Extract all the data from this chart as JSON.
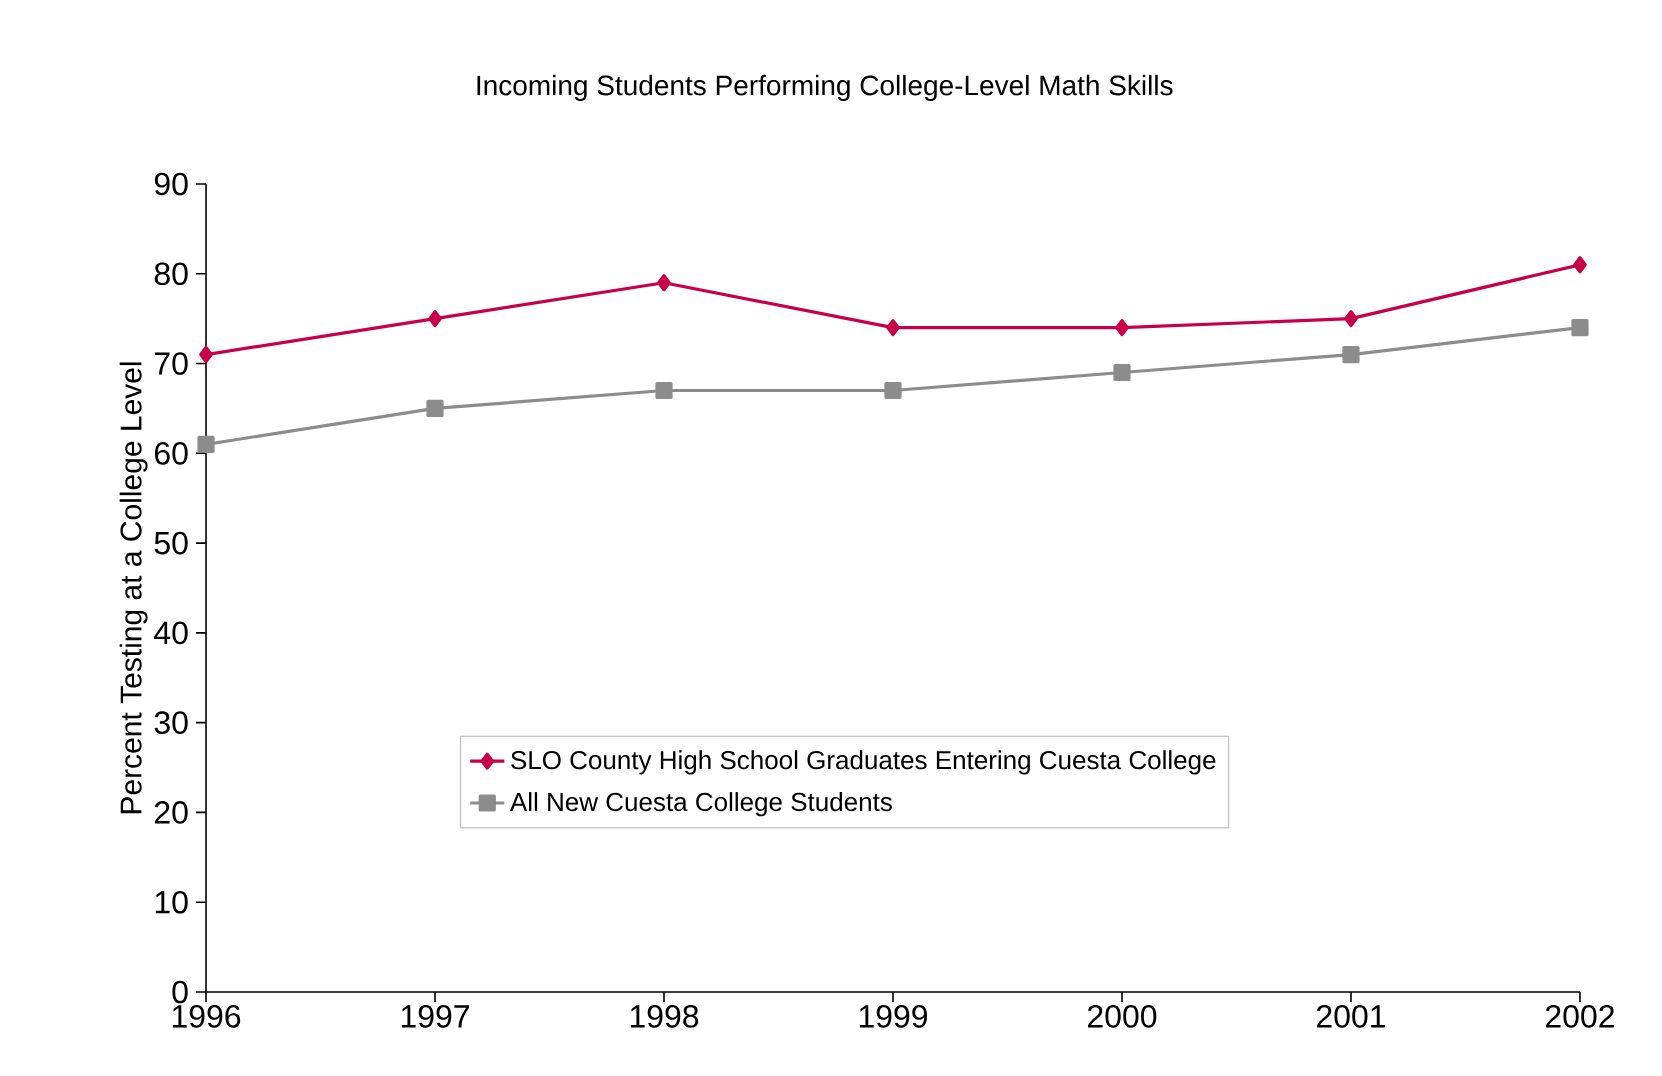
{
  "chart_data": {
    "type": "line",
    "title": "Incoming Students Performing College-Level Math Skills",
    "ylabel": "Percent Testing at a College Level",
    "x": [
      1996,
      1997,
      1998,
      1999,
      2000,
      2001,
      2002
    ],
    "series": [
      {
        "name": "SLO County High School Graduates Entering Cuesta College",
        "color": "#c8004a",
        "marker": "diamond",
        "values": [
          71,
          75,
          79,
          74,
          74,
          75,
          81
        ]
      },
      {
        "name": "All New Cuesta College Students",
        "color": "#8c8c8c",
        "marker": "square",
        "values": [
          61,
          65,
          67,
          67,
          69,
          71,
          74
        ]
      }
    ],
    "xlim": [
      1996,
      2002
    ],
    "xticks": [
      1996,
      1997,
      1998,
      1999,
      2000,
      2001,
      2002
    ],
    "ylim": [
      0,
      90
    ],
    "yticks": [
      0,
      10,
      20,
      30,
      40,
      50,
      60,
      70,
      80,
      90
    ],
    "grid": false,
    "legend": "bottom right"
  }
}
